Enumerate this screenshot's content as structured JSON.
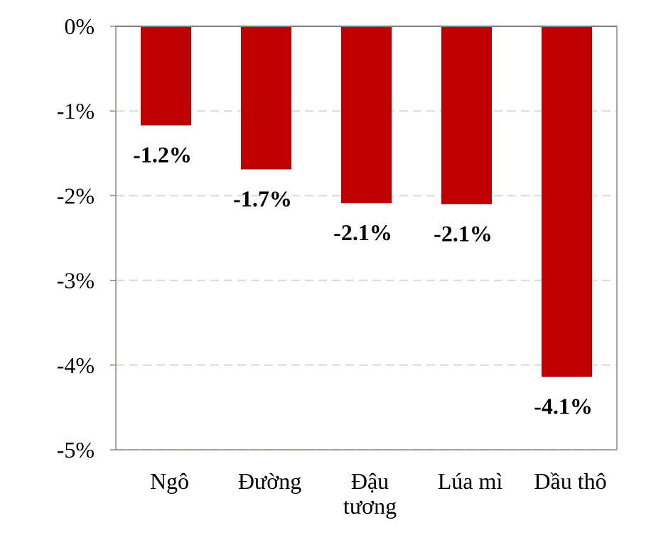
{
  "chart_data": {
    "type": "bar",
    "categories": [
      "Ngô",
      "Đường",
      "Đậu tương",
      "Lúa mì",
      "Dầu thô"
    ],
    "category_lines": [
      [
        "Ngô"
      ],
      [
        "Đường"
      ],
      [
        "Đậu",
        "tương"
      ],
      [
        "Lúa mì"
      ],
      [
        "Dầu thô"
      ]
    ],
    "values": [
      -1.17,
      -1.69,
      -2.09,
      -2.1,
      -4.14
    ],
    "data_labels": [
      "-1.2%",
      "-1.7%",
      "-2.1%",
      "-2.1%",
      "-4.1%"
    ],
    "ylim": [
      -5,
      0
    ],
    "yticks": [
      0,
      -1,
      -2,
      -3,
      -4,
      -5
    ],
    "ytick_labels": [
      "0%",
      "-1%",
      "-2%",
      "-3%",
      "-4%",
      "-5%"
    ],
    "title": "",
    "xlabel": "",
    "ylabel": "",
    "grid": true,
    "legend": "none",
    "colors": {
      "bar": "#c00000",
      "grid": "#d9d9d9",
      "axis": "#8c8c7a",
      "zero_line": "#7f7f7f"
    }
  }
}
